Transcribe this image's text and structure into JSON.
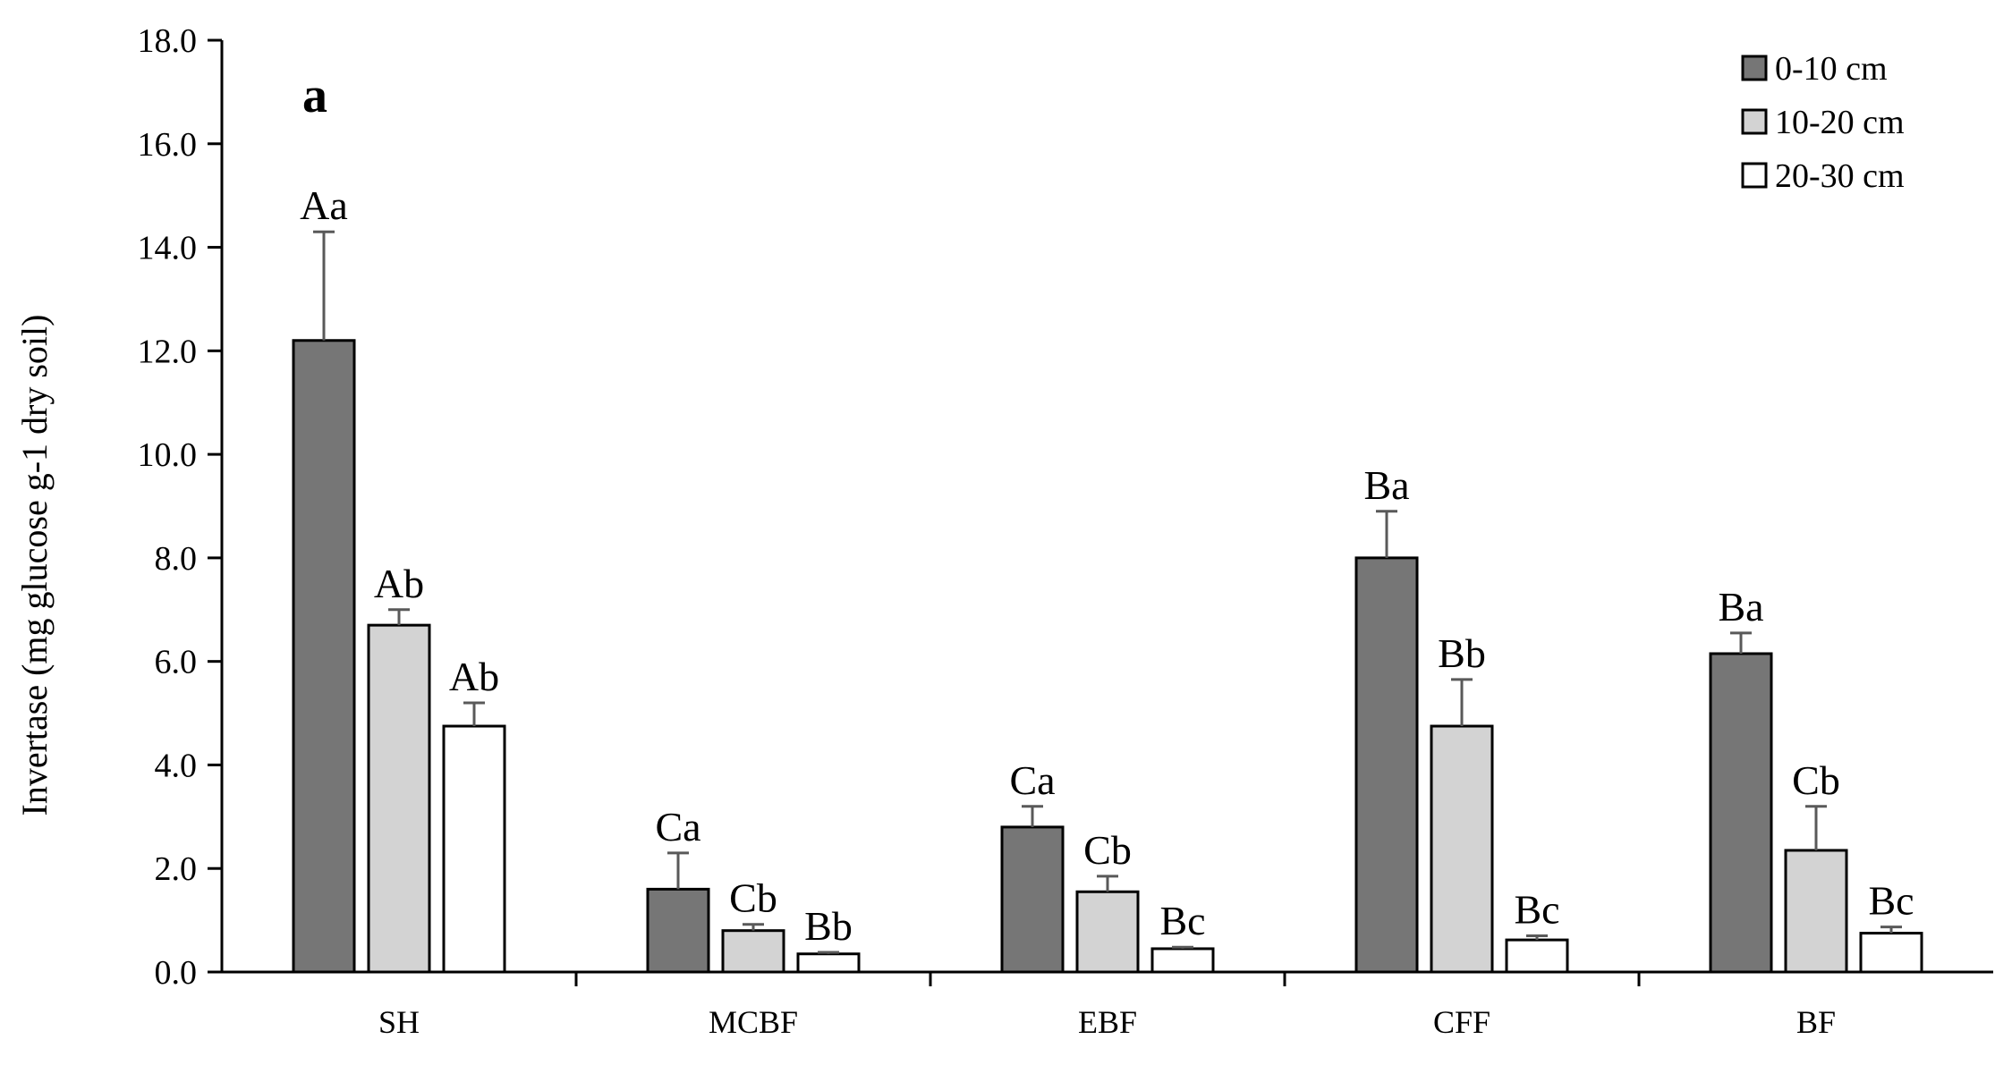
{
  "chart_data": {
    "type": "bar",
    "panel_label": "a",
    "ylabel": "Invertase (mg glucose g-1 dry soil)",
    "xlabel": "",
    "ylim": [
      0,
      18
    ],
    "yticks": [
      "0.0",
      "2.0",
      "4.0",
      "6.0",
      "8.0",
      "10.0",
      "12.0",
      "14.0",
      "16.0",
      "18.0"
    ],
    "categories": [
      "SH",
      "MCBF",
      "EBF",
      "CFF",
      "BF"
    ],
    "legend_position": "top-right",
    "grid": false,
    "series": [
      {
        "name": "0-10 cm",
        "color": "#767676",
        "values": [
          12.2,
          1.6,
          2.8,
          8.0,
          6.15
        ],
        "errors": [
          2.1,
          0.7,
          0.4,
          0.9,
          0.4
        ],
        "labels": [
          "Aa",
          "Ca",
          "Ca",
          "Ba",
          "Ba"
        ]
      },
      {
        "name": "10-20 cm",
        "color": "#d3d3d3",
        "values": [
          6.7,
          0.8,
          1.55,
          4.75,
          2.35
        ],
        "errors": [
          0.3,
          0.12,
          0.3,
          0.9,
          0.85
        ],
        "labels": [
          "Ab",
          "Cb",
          "Cb",
          "Bb",
          "Cb"
        ]
      },
      {
        "name": "20-30 cm",
        "color": "#ffffff",
        "values": [
          4.75,
          0.35,
          0.45,
          0.62,
          0.75
        ],
        "errors": [
          0.45,
          0.03,
          0.03,
          0.08,
          0.12
        ],
        "labels": [
          "Ab",
          "Bb",
          "Bc",
          "Bc",
          "Bc"
        ]
      }
    ]
  }
}
